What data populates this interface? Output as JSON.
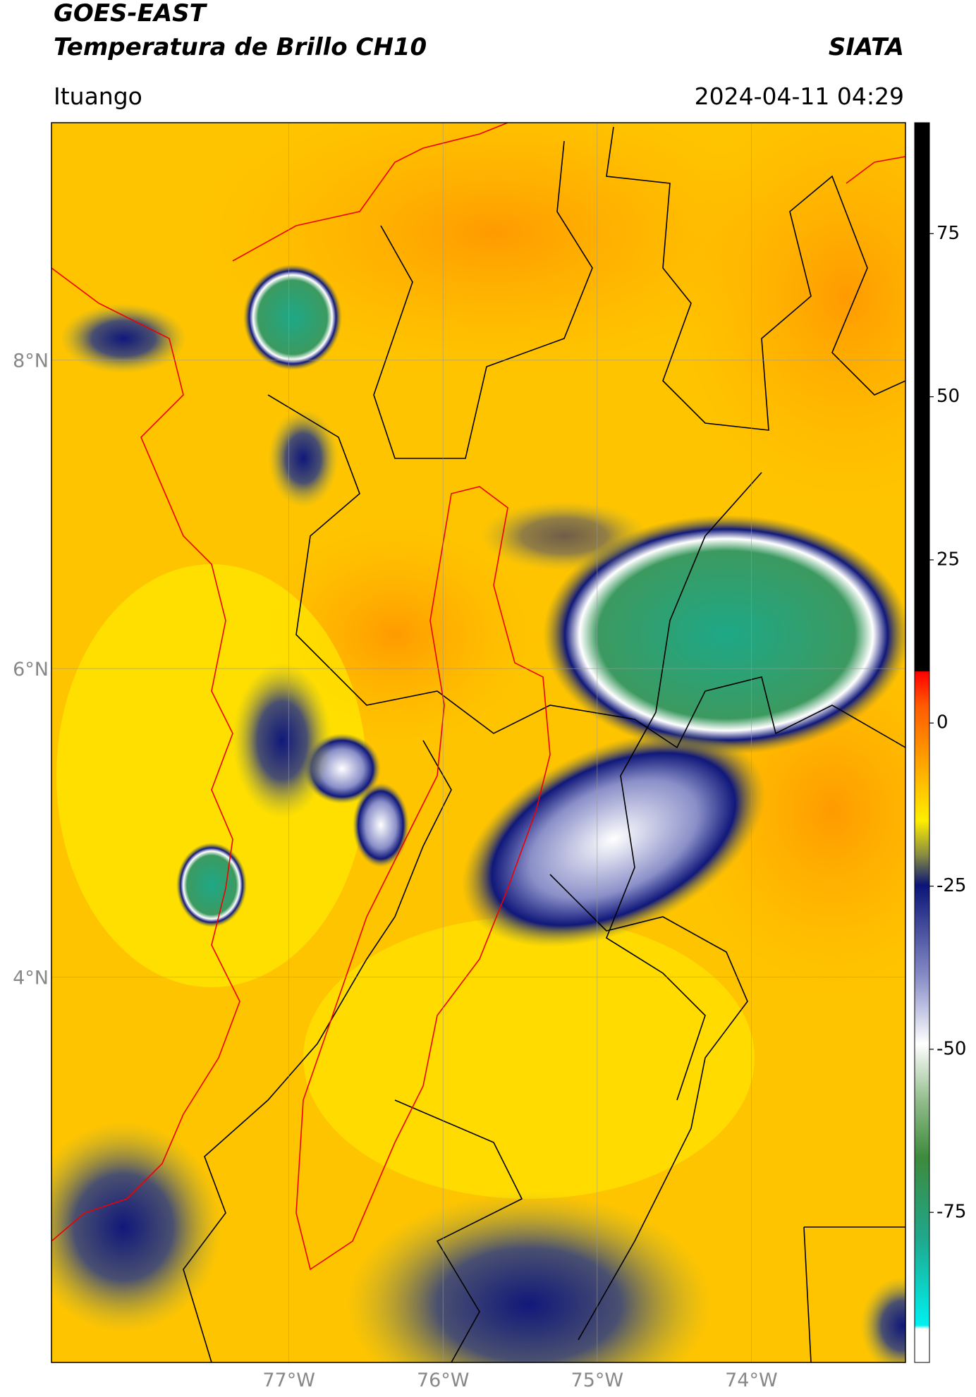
{
  "header": {
    "title": "GOES-EAST",
    "subtitle": "Temperatura de Brillo CH10",
    "source": "SIATA",
    "location": "Ituango",
    "datetime": "2024-04-11 04:29"
  },
  "map": {
    "type": "map",
    "xlim": [
      -78.54,
      -73.0
    ],
    "ylim": [
      1.5,
      9.54
    ],
    "xticks": [
      {
        "value": -77,
        "label": "77°W"
      },
      {
        "value": -76,
        "label": "76°W"
      },
      {
        "value": -75,
        "label": "75°W"
      },
      {
        "value": -74,
        "label": "74°W"
      }
    ],
    "yticks": [
      {
        "value": 8,
        "label": "8°N"
      },
      {
        "value": 6,
        "label": "6°N"
      },
      {
        "value": 4,
        "label": "4°N"
      }
    ],
    "grid": true,
    "colorbar": {
      "lim": [
        -98,
        92
      ],
      "ticks": [
        75,
        50,
        25,
        0,
        -25,
        -50,
        -75
      ]
    }
  }
}
